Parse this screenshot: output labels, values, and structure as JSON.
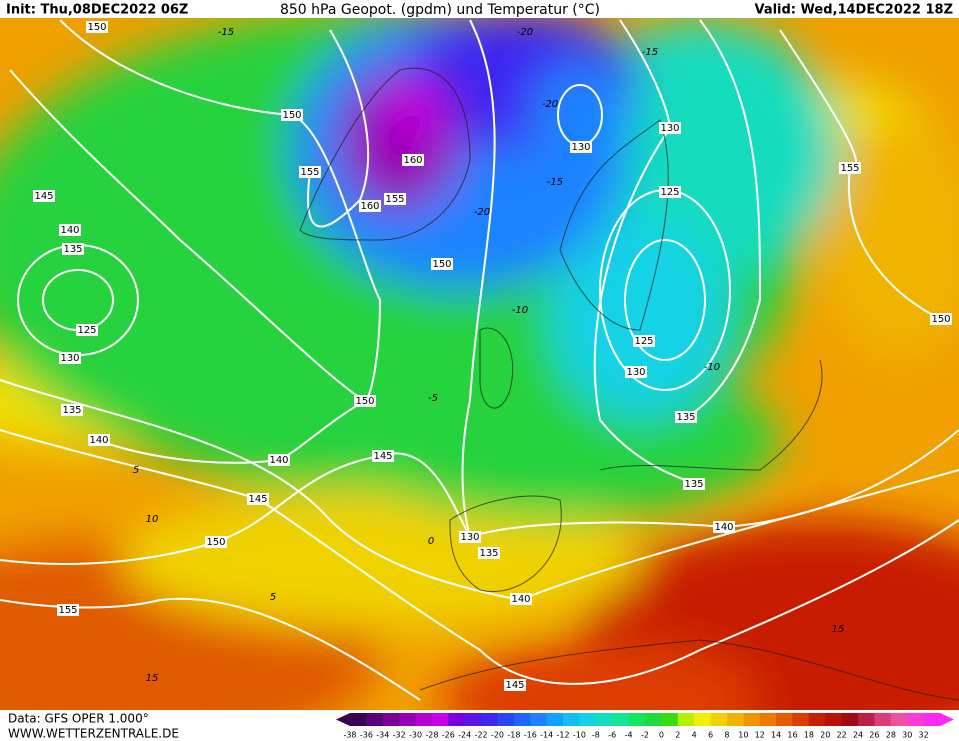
{
  "header": {
    "init": "Init: Thu,08DEC2022 06Z",
    "title": "850 hPa Geopot. (gpdm) und Temperatur (°C)",
    "valid": "Valid: Wed,14DEC2022 18Z"
  },
  "footer": {
    "data_source": "Data: GFS OPER 1.000°",
    "website": "WWW.WETTERZENTRALE.DE"
  },
  "contour_labels": [
    150,
    150,
    155,
    160,
    155,
    160,
    150,
    145,
    140,
    135,
    125,
    130,
    135,
    140,
    140,
    145,
    150,
    145,
    150,
    155,
    130,
    130,
    125,
    125,
    130,
    135,
    135,
    140,
    130,
    135,
    140,
    145,
    150,
    155
  ],
  "temperature_labels": [
    -15,
    -15,
    -20,
    -20,
    -15,
    -20,
    -10,
    -5,
    -10,
    0,
    5,
    10,
    5,
    15,
    15
  ],
  "colorbar": {
    "labels": [
      -38,
      -36,
      -34,
      -32,
      -30,
      -28,
      -26,
      -24,
      -22,
      -20,
      -18,
      -16,
      -14,
      -12,
      -10,
      -8,
      -6,
      -4,
      -2,
      0,
      2,
      4,
      6,
      8,
      10,
      12,
      14,
      16,
      18,
      20,
      22,
      24,
      26,
      28,
      30,
      32
    ],
    "colors": [
      "#3c0050",
      "#5a0078",
      "#7a0096",
      "#9600b4",
      "#b400d2",
      "#c800e6",
      "#7800dc",
      "#5a14e6",
      "#3c28f0",
      "#2846f5",
      "#1e64ff",
      "#1e82ff",
      "#14a0ff",
      "#14bef5",
      "#14d2e6",
      "#14dcbe",
      "#14e696",
      "#14e664",
      "#1edc3c",
      "#3cdc14",
      "#b4f000",
      "#f0f000",
      "#f0d200",
      "#f0b400",
      "#f09600",
      "#f07800",
      "#e65a00",
      "#dc3c00",
      "#c81e00",
      "#b41400",
      "#a00a14",
      "#be1e46",
      "#dc3c78",
      "#f050a0",
      "#ff3cd2",
      "#ff28f0"
    ]
  }
}
